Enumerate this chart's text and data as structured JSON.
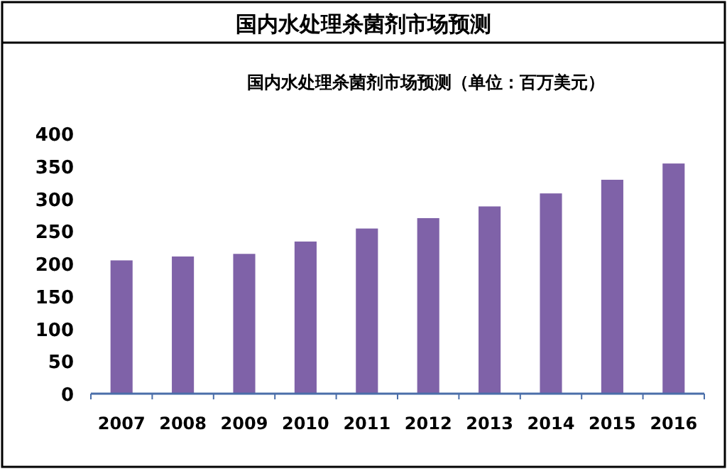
{
  "chart_data": {
    "type": "bar",
    "title": "国内水处理杀菌剂市场预测",
    "subtitle": "国内水处理杀菌剂市场预测（单位：百万美元）",
    "categories": [
      "2007",
      "2008",
      "2009",
      "2010",
      "2011",
      "2012",
      "2013",
      "2014",
      "2015",
      "2016"
    ],
    "values": [
      205,
      211,
      215,
      234,
      254,
      270,
      288,
      308,
      329,
      354
    ],
    "color": "#7f62a8",
    "ylim": [
      0,
      400
    ],
    "yticks": [
      0,
      50,
      100,
      150,
      200,
      250,
      300,
      350,
      400
    ],
    "grid": false
  }
}
